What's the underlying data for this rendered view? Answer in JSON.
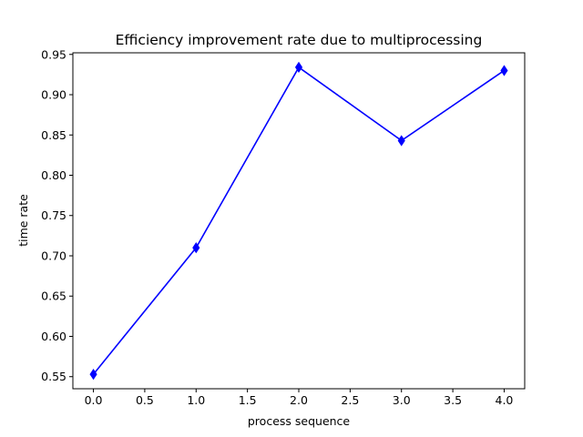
{
  "chart_data": {
    "type": "line",
    "title": "Efficiency improvement rate due to multiprocessing",
    "xlabel": "process sequence",
    "ylabel": "time rate",
    "x": [
      0,
      1,
      2,
      3,
      4
    ],
    "series": [
      {
        "values": [
          0.553,
          0.71,
          0.934,
          0.843,
          0.93
        ],
        "color": "#0000ff",
        "marker": "thin-diamond"
      }
    ],
    "xlim": [
      -0.2,
      4.2
    ],
    "ylim": [
      0.535,
      0.952
    ],
    "xticks": [
      0.0,
      0.5,
      1.0,
      1.5,
      2.0,
      2.5,
      3.0,
      3.5,
      4.0
    ],
    "xtick_labels": [
      "0.0",
      "0.5",
      "1.0",
      "1.5",
      "2.0",
      "2.5",
      "3.0",
      "3.5",
      "4.0"
    ],
    "yticks": [
      0.55,
      0.6,
      0.65,
      0.7,
      0.75,
      0.8,
      0.85,
      0.9,
      0.95
    ],
    "ytick_labels": [
      "0.55",
      "0.60",
      "0.65",
      "0.70",
      "0.75",
      "0.80",
      "0.85",
      "0.90",
      "0.95"
    ],
    "grid": false,
    "legend": false
  }
}
